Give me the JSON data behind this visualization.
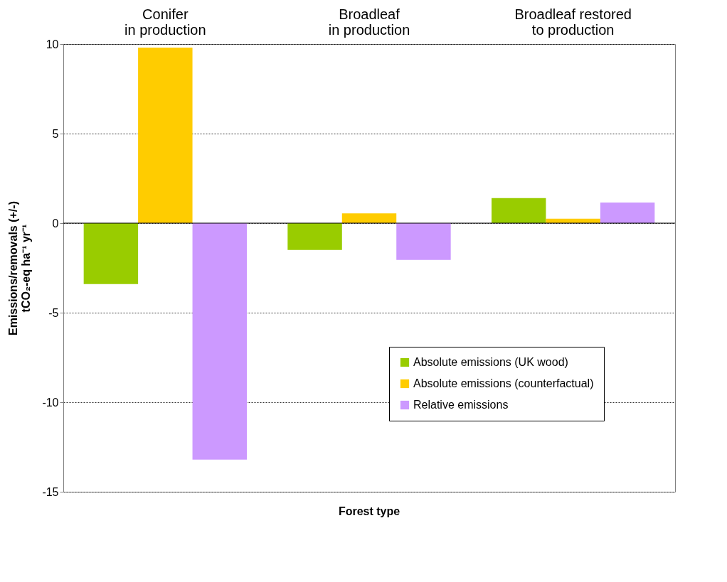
{
  "chart_data": {
    "type": "bar",
    "xlabel": "Forest type",
    "ylabel": "Emissions/removals (+/-)\ntCO₂-eq ha⁻¹ yr⁻¹",
    "categories": [
      "Conifer\nin production",
      "Broadleaf\nin production",
      "Broadleaf restored\nto production"
    ],
    "series": [
      {
        "name": "Absolute emissions (UK wood)",
        "color": "#99cc00",
        "values": [
          -3.4,
          -1.5,
          1.4
        ]
      },
      {
        "name": "Absolute emissions (counterfactual)",
        "color": "#ffcc00",
        "values": [
          9.8,
          0.55,
          0.25
        ]
      },
      {
        "name": "Relative emissions",
        "color": "#cc99ff",
        "values": [
          -13.2,
          -2.05,
          1.15
        ]
      }
    ],
    "ylim": [
      -15,
      10
    ],
    "yticks": [
      -15,
      -10,
      -5,
      0,
      5,
      10
    ],
    "grid": "y",
    "legend": "bottom right",
    "ref_lines": [
      {
        "axis": "y",
        "value": 0,
        "color": "#000000"
      }
    ]
  }
}
